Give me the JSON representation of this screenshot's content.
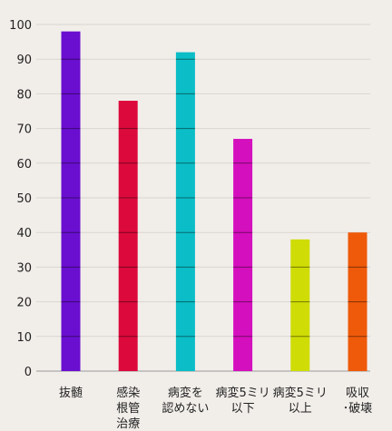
{
  "chart_data": {
    "type": "bar",
    "title": "",
    "xlabel": "",
    "ylabel": "",
    "ylim": [
      0,
      100
    ],
    "yticks": [
      0,
      10,
      20,
      30,
      40,
      50,
      60,
      70,
      80,
      90,
      100
    ],
    "grid": true,
    "categories": [
      [
        "抜髄"
      ],
      [
        "感染",
        "根管",
        "治療"
      ],
      [
        "病変を",
        "認めない"
      ],
      [
        "病変5ミリ",
        "以下"
      ],
      [
        "病変5ミリ",
        "以上"
      ],
      [
        "吸収",
        "･破壊"
      ]
    ],
    "values": [
      98,
      78,
      92,
      67,
      38,
      40
    ],
    "colors": [
      "#6a0fd0",
      "#dc0a3c",
      "#0bbdc6",
      "#d40fbd",
      "#cfdc05",
      "#ee5a0a"
    ]
  }
}
